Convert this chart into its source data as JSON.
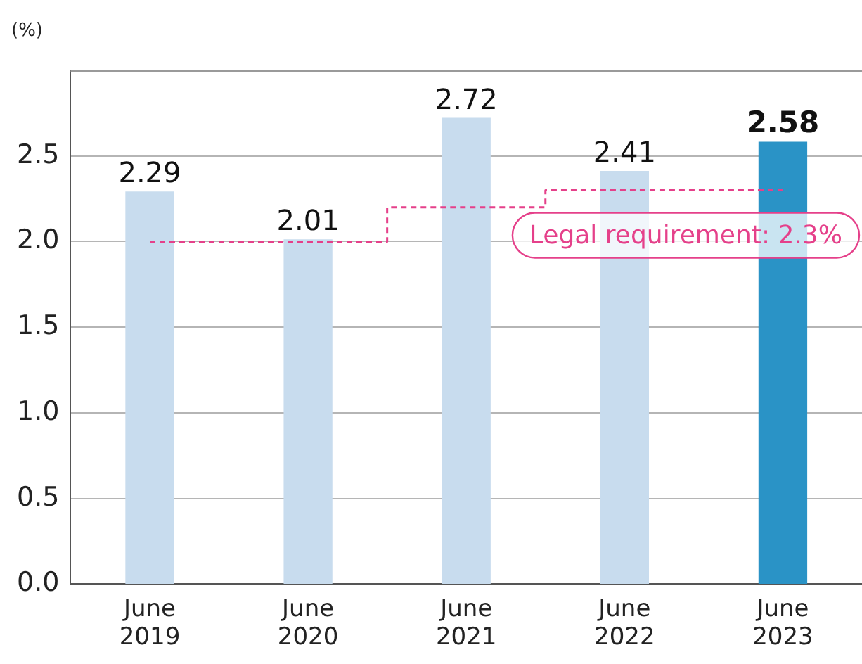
{
  "chart_data": {
    "type": "bar",
    "ylabel": "(%)",
    "categories": [
      "June 2019",
      "June 2020",
      "June 2021",
      "June 2022",
      "June 2023"
    ],
    "series": [
      {
        "values": [
          2.29,
          2.01,
          2.72,
          2.41,
          2.58
        ],
        "value_labels": [
          "2.29",
          "2.01",
          "2.72",
          "2.41",
          "2.58"
        ],
        "colors": [
          "#c8dcee",
          "#c8dcee",
          "#c8dcee",
          "#c8dcee",
          "#2a93c6"
        ]
      },
      {
        "type": "step",
        "values": [
          2.0,
          2.0,
          2.2,
          2.3,
          2.3
        ],
        "color": "#e5408a",
        "line_style": "dashed"
      }
    ],
    "ylim": [
      0,
      3.0
    ],
    "yticks": [
      {
        "value": 0,
        "label": "0.0"
      },
      {
        "value": 0.5,
        "label": "0.5"
      },
      {
        "value": 1,
        "label": "1.0"
      },
      {
        "value": 1.5,
        "label": "1.5"
      },
      {
        "value": 2,
        "label": "2.0"
      },
      {
        "value": 2.5,
        "label": "2.5"
      }
    ],
    "grid": "y",
    "legend": false,
    "annotations": [
      {
        "text": "Legal requirement: 2.3%",
        "x": "June 2023",
        "y": 2.3
      }
    ]
  }
}
